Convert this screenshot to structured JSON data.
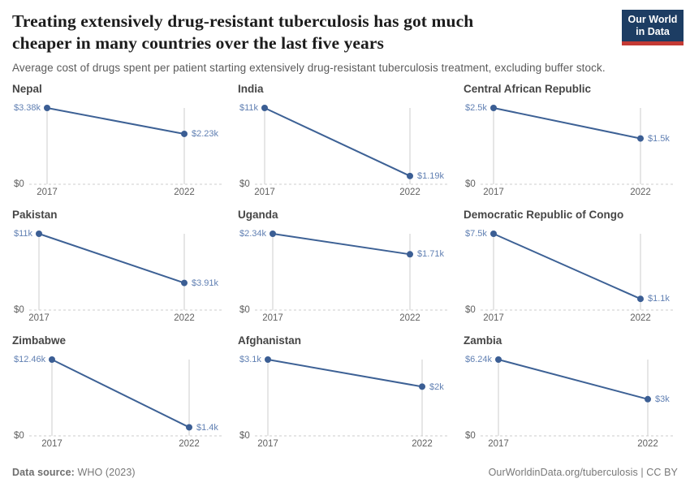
{
  "header": {
    "title_line1": "Treating extensively drug-resistant tuberculosis has got much",
    "title_line2": "cheaper in many countries over the last five years",
    "subtitle": "Average cost of drugs spent per patient starting extensively drug-resistant tuberculosis treatment, excluding buffer stock."
  },
  "logo": {
    "line1": "Our World",
    "line2": "in Data"
  },
  "chart_data": {
    "type": "line",
    "layout": "small-multiples 3x3",
    "x": [
      2017,
      2022
    ],
    "x_labels": [
      "2017",
      "2022"
    ],
    "y_zero_label": "$0",
    "grid": "vertical year gridlines + dashed zero baseline",
    "line_color": "#3d6195",
    "point_color": "#3b5e94",
    "value_label_color": "#6180b3",
    "gridline_color": "#cccccc",
    "panels": [
      {
        "country": "Nepal",
        "values": [
          3.38,
          2.23
        ],
        "value_labels": [
          "$3.38k",
          "$2.23k"
        ],
        "ylim": [
          0,
          3.38
        ]
      },
      {
        "country": "India",
        "values": [
          11,
          1.19
        ],
        "value_labels": [
          "$11k",
          "$1.19k"
        ],
        "ylim": [
          0,
          11
        ]
      },
      {
        "country": "Central African Republic",
        "values": [
          2.5,
          1.5
        ],
        "value_labels": [
          "$2.5k",
          "$1.5k"
        ],
        "ylim": [
          0,
          2.5
        ]
      },
      {
        "country": "Pakistan",
        "values": [
          11,
          3.91
        ],
        "value_labels": [
          "$11k",
          "$3.91k"
        ],
        "ylim": [
          0,
          11
        ]
      },
      {
        "country": "Uganda",
        "values": [
          2.34,
          1.71
        ],
        "value_labels": [
          "$2.34k",
          "$1.71k"
        ],
        "ylim": [
          0,
          2.34
        ]
      },
      {
        "country": "Democratic Republic of Congo",
        "values": [
          7.5,
          1.1
        ],
        "value_labels": [
          "$7.5k",
          "$1.1k"
        ],
        "ylim": [
          0,
          7.5
        ]
      },
      {
        "country": "Zimbabwe",
        "values": [
          12.46,
          1.4
        ],
        "value_labels": [
          "$12.46k",
          "$1.4k"
        ],
        "ylim": [
          0,
          12.46
        ]
      },
      {
        "country": "Afghanistan",
        "values": [
          3.1,
          2
        ],
        "value_labels": [
          "$3.1k",
          "$2k"
        ],
        "ylim": [
          0,
          3.1
        ]
      },
      {
        "country": "Zambia",
        "values": [
          6.24,
          3
        ],
        "value_labels": [
          "$6.24k",
          "$3k"
        ],
        "ylim": [
          0,
          6.24
        ]
      }
    ]
  },
  "footer": {
    "source_label": "Data source:",
    "source_value": " WHO (2023)",
    "credit": "OurWorldinData.org/tuberculosis | CC BY"
  }
}
